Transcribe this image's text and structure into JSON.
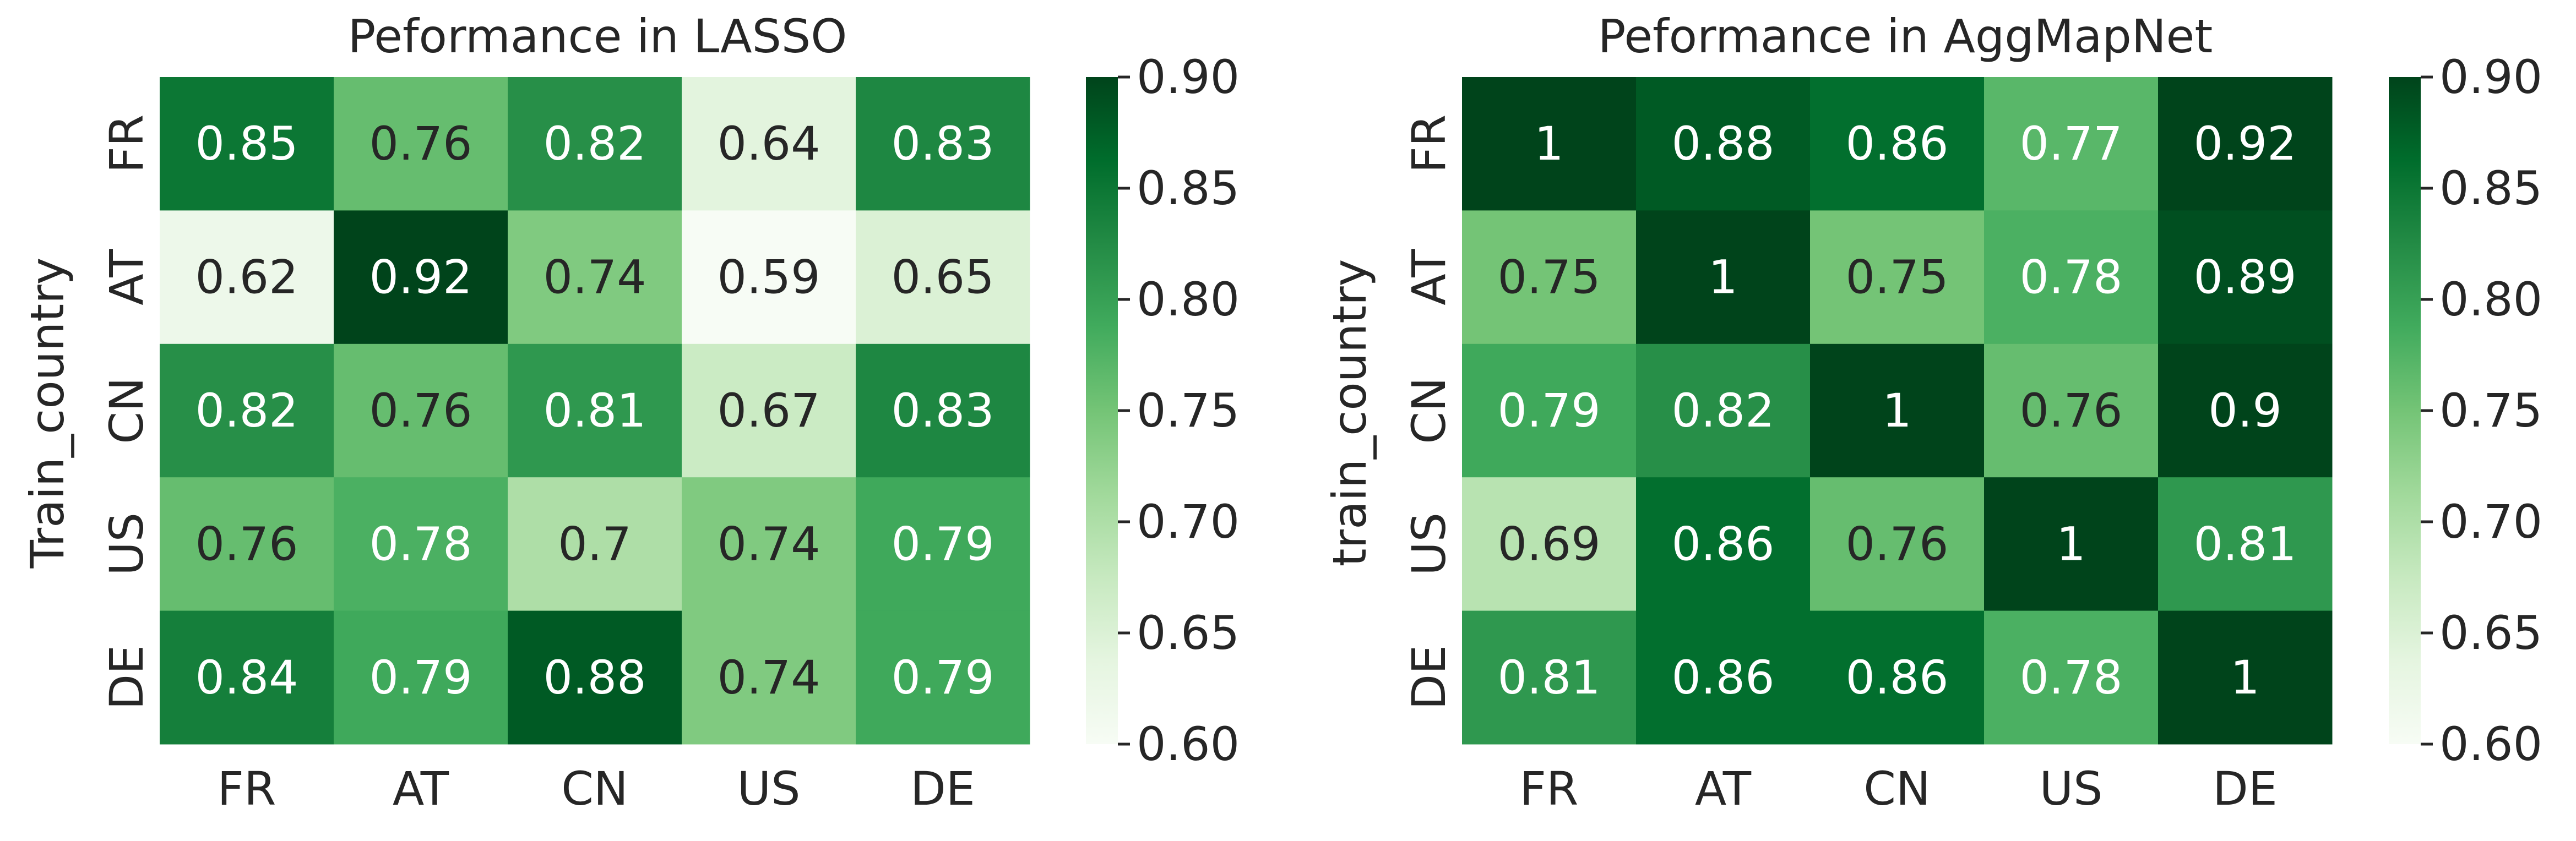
{
  "chart_data": [
    {
      "type": "heatmap",
      "title": "Peformance in LASSO",
      "ylabel": "Train_country",
      "xlabel": "",
      "rows": [
        "FR",
        "AT",
        "CN",
        "US",
        "DE"
      ],
      "columns": [
        "FR",
        "AT",
        "CN",
        "US",
        "DE"
      ],
      "values": [
        [
          0.85,
          0.76,
          0.82,
          0.64,
          0.83
        ],
        [
          0.62,
          0.92,
          0.74,
          0.59,
          0.65
        ],
        [
          0.82,
          0.76,
          0.81,
          0.67,
          0.83
        ],
        [
          0.76,
          0.78,
          0.7,
          0.74,
          0.79
        ],
        [
          0.84,
          0.79,
          0.88,
          0.74,
          0.79
        ]
      ],
      "colormap": "Greens",
      "vmin": 0.6,
      "vmax": 0.9,
      "colorbar_ticks": [
        "0.60",
        "0.65",
        "0.70",
        "0.75",
        "0.80",
        "0.85",
        "0.90"
      ]
    },
    {
      "type": "heatmap",
      "title": "Peformance in AggMapNet",
      "ylabel": "train_country",
      "xlabel": "",
      "rows": [
        "FR",
        "AT",
        "CN",
        "US",
        "DE"
      ],
      "columns": [
        "FR",
        "AT",
        "CN",
        "US",
        "DE"
      ],
      "values": [
        [
          1,
          0.88,
          0.86,
          0.77,
          0.92
        ],
        [
          0.75,
          1,
          0.75,
          0.78,
          0.89
        ],
        [
          0.79,
          0.82,
          1,
          0.76,
          0.9
        ],
        [
          0.69,
          0.86,
          0.76,
          1,
          0.81
        ],
        [
          0.81,
          0.86,
          0.86,
          0.78,
          1
        ]
      ],
      "colormap": "Greens",
      "vmin": 0.6,
      "vmax": 0.9,
      "colorbar_ticks": [
        "0.60",
        "0.65",
        "0.70",
        "0.75",
        "0.80",
        "0.85",
        "0.90"
      ]
    }
  ]
}
